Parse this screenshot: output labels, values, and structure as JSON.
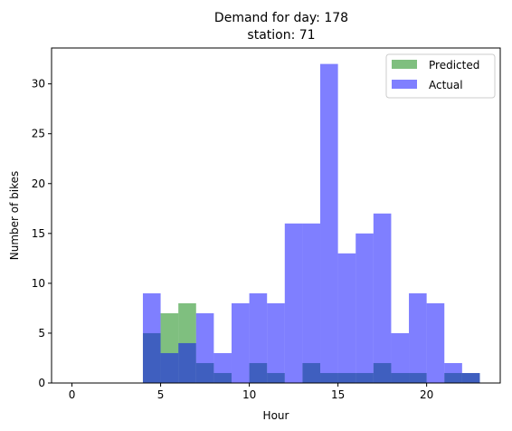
{
  "chart_data": {
    "type": "bar",
    "title_line1": "Demand for day: 178",
    "title_line2": "station: 71",
    "xlabel": "Hour",
    "ylabel": "Number of bikes",
    "xlim": [
      -1.15,
      24.15
    ],
    "ylim": [
      0,
      33.6
    ],
    "xticks": [
      "0",
      "5",
      "10",
      "15",
      "20"
    ],
    "yticks": [
      "0",
      "5",
      "10",
      "15",
      "20",
      "25",
      "30"
    ],
    "legend_position": "top-right",
    "bins": [
      0,
      1,
      2,
      3,
      4,
      5,
      6,
      7,
      8,
      9,
      10,
      11,
      12,
      13,
      14,
      15,
      16,
      17,
      18,
      19,
      20,
      21,
      22
    ],
    "series": [
      {
        "name": "Predicted",
        "color": "#008000",
        "opacity": 0.5,
        "values": [
          0,
          0,
          0,
          0,
          5,
          7,
          8,
          2,
          1,
          0,
          2,
          1,
          0,
          2,
          1,
          1,
          1,
          2,
          1,
          1,
          0,
          1,
          1
        ]
      },
      {
        "name": "Actual",
        "color": "#0000ff",
        "opacity": 0.5,
        "values": [
          0,
          0,
          0,
          0,
          9,
          3,
          4,
          7,
          3,
          8,
          9,
          8,
          16,
          16,
          32,
          13,
          15,
          17,
          5,
          9,
          8,
          2,
          1
        ]
      }
    ]
  }
}
